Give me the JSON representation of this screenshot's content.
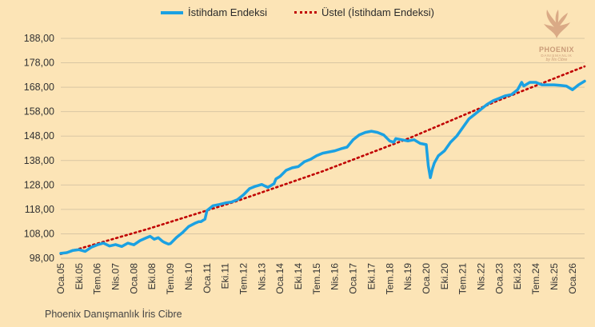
{
  "legend": {
    "series_label": "İstihdam Endeksi",
    "trend_label": "Üstel (İstihdam Endeksi)"
  },
  "footer": {
    "credit": "Phoenix Danışmanlık İris Cibre"
  },
  "logo": {
    "word": "PHOENIX",
    "sub": "DANIŞMANLIK",
    "sign": "by İris Cibre"
  },
  "colors": {
    "background": "#FCE4B6",
    "series": "#1BA1E2",
    "trend": "#C00000",
    "grid": "#D9C6A3"
  },
  "chart_data": {
    "type": "line",
    "grid": true,
    "legend_position": "top",
    "ylim": [
      98,
      188
    ],
    "yticks": [
      "98,00",
      "108,00",
      "118,00",
      "128,00",
      "138,00",
      "148,00",
      "158,00",
      "168,00",
      "178,00",
      "188,00"
    ],
    "xticks": [
      "Oca.05",
      "Eki.05",
      "Tem.06",
      "Nis.07",
      "Oca.08",
      "Eki.08",
      "Tem.09",
      "Nis.10",
      "Oca.11",
      "Eki.11",
      "Tem.12",
      "Nis.13",
      "Oca.14",
      "Eki.14",
      "Tem.15",
      "Nis.16",
      "Oca.17",
      "Eki.17",
      "Tem.18",
      "Nis.19",
      "Oca.20",
      "Eki.20",
      "Tem.21",
      "Nis.22",
      "Oca.23",
      "Eki.23",
      "Tem.24",
      "Nis.25",
      "Oca.26"
    ],
    "xtick_months": [
      0,
      9,
      18,
      27,
      36,
      45,
      54,
      63,
      72,
      81,
      90,
      99,
      108,
      117,
      126,
      135,
      144,
      153,
      162,
      171,
      180,
      189,
      198,
      207,
      216,
      225,
      234,
      243,
      252
    ],
    "series": [
      {
        "name": "İstihdam Endeksi",
        "month_index": [
          0,
          3,
          6,
          9,
          12,
          15,
          18,
          21,
          24,
          27,
          30,
          33,
          36,
          39,
          42,
          44,
          46,
          48,
          50,
          51,
          53,
          54,
          57,
          60,
          63,
          66,
          68,
          69,
          71,
          72,
          75,
          78,
          81,
          84,
          87,
          90,
          93,
          96,
          99,
          102,
          105,
          106,
          108,
          111,
          114,
          117,
          120,
          123,
          126,
          129,
          132,
          135,
          138,
          141,
          144,
          147,
          150,
          153,
          156,
          159,
          162,
          164,
          165,
          168,
          171,
          174,
          177,
          180,
          181,
          182,
          183,
          184,
          186,
          189,
          192,
          195,
          198,
          201,
          204,
          207,
          210,
          213,
          216,
          219,
          222,
          225,
          227,
          228,
          231,
          234,
          237,
          240,
          243,
          246,
          249,
          252,
          255,
          258
        ],
        "values": [
          100.0,
          100.3,
          101.2,
          101.5,
          100.8,
          102.5,
          103.5,
          104.2,
          103.0,
          103.6,
          102.8,
          104.2,
          103.5,
          105.2,
          106.3,
          107.0,
          105.8,
          106.4,
          105.0,
          104.5,
          103.8,
          104.0,
          106.5,
          108.5,
          111.0,
          112.3,
          113.0,
          113.0,
          114.0,
          117.5,
          119.5,
          120.0,
          120.6,
          121.0,
          122.0,
          124.0,
          126.5,
          127.5,
          128.2,
          127.0,
          128.5,
          130.5,
          131.5,
          134.0,
          135.0,
          135.5,
          137.5,
          138.5,
          140.0,
          141.0,
          141.5,
          142.0,
          142.8,
          143.5,
          146.5,
          148.5,
          149.5,
          150.0,
          149.5,
          148.5,
          146.0,
          145.5,
          147.0,
          146.5,
          146.0,
          146.5,
          145.0,
          144.5,
          136.0,
          131.0,
          134.5,
          137.0,
          140.0,
          142.0,
          145.5,
          148.0,
          151.5,
          155.0,
          157.0,
          159.0,
          161.0,
          162.5,
          163.5,
          164.5,
          165.0,
          167.0,
          170.0,
          168.5,
          170.0,
          170.0,
          169.0,
          169.0,
          169.0,
          168.8,
          168.5,
          167.0,
          169.0,
          170.5
        ]
      },
      {
        "name": "Üstel (İstihdam Endeksi)",
        "month_index": [
          0,
          43,
          86,
          129,
          172,
          215,
          258
        ],
        "values": [
          99.7,
          110.0,
          121.2,
          133.6,
          147.3,
          162.4,
          176.5
        ]
      }
    ]
  }
}
